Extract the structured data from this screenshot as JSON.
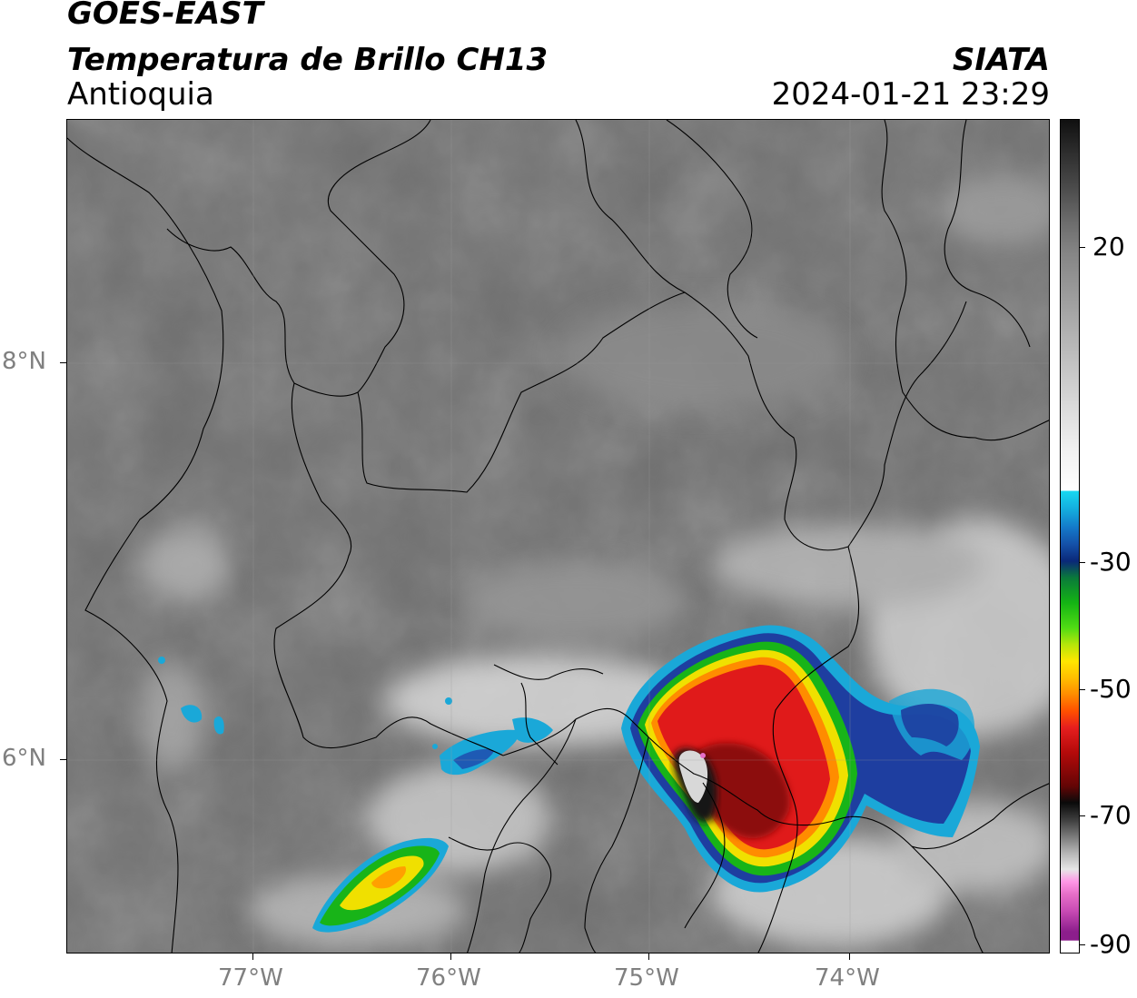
{
  "header": {
    "satellite": "GOES-EAST",
    "product": "Temperatura de Brillo CH13",
    "region": "Antioquia",
    "agency": "SIATA",
    "datetime": "2024-01-21 23:29"
  },
  "map": {
    "longitude_ticks": [
      "77°W",
      "76°W",
      "75°W",
      "74°W"
    ],
    "latitude_ticks": [
      "8°N",
      "6°N"
    ],
    "extent": {
      "lon_min": -77.95,
      "lon_max": -73.0,
      "lat_min": 4.95,
      "lat_max": 9.2
    }
  },
  "colorbar": {
    "ticks": [
      "20",
      "-30",
      "-50",
      "-70",
      "-90"
    ],
    "colors": {
      "warm_gray": "#6e6e6e",
      "white": "#f2f2f2",
      "cyan": "#17c8e6",
      "blue": "#1450a8",
      "green": "#19b419",
      "yellow": "#ffe600",
      "orange": "#ff8c00",
      "red": "#e61e1e",
      "black": "#0a0a0a",
      "pink": "#e66ec8",
      "purple": "#8c1e8c"
    }
  }
}
